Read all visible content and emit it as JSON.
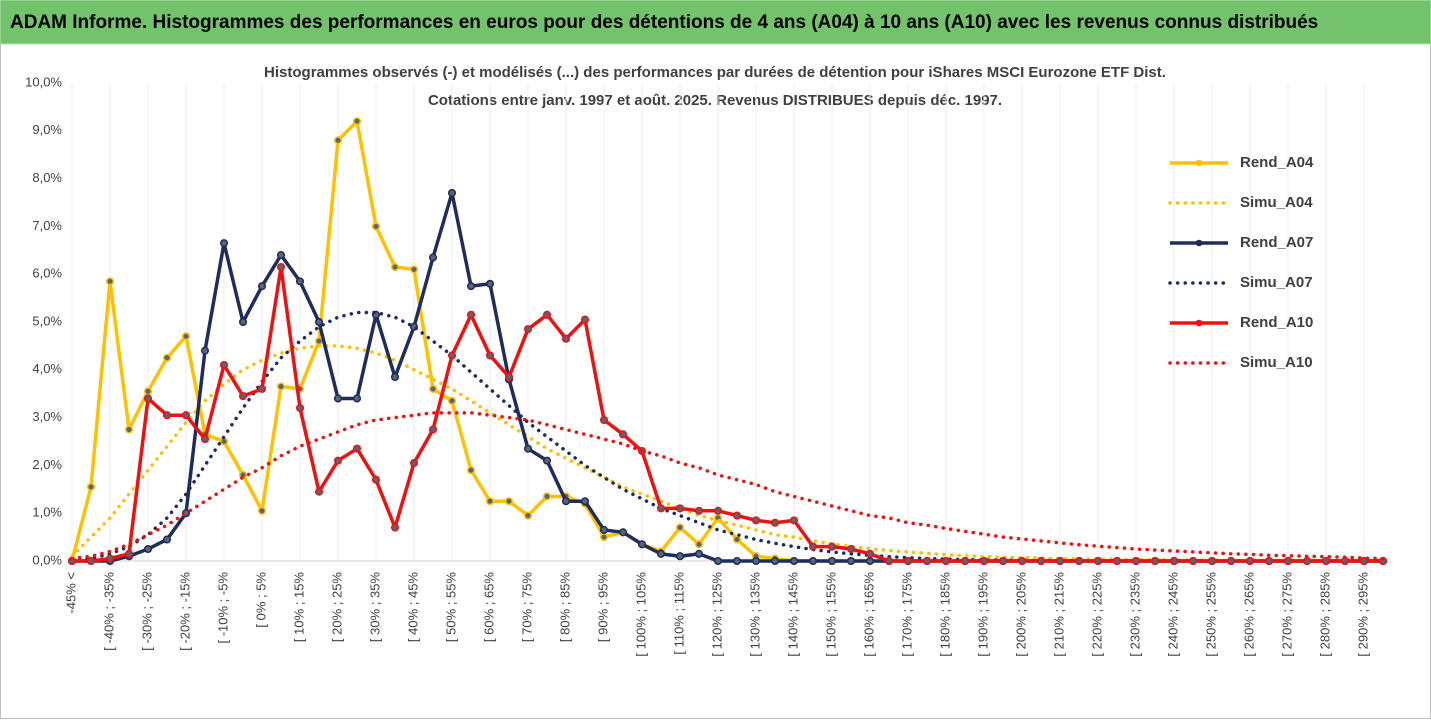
{
  "header": {
    "title": "ADAM Informe. Histogrammes des performances en euros pour des détentions de 4 ans (A04) à 10 ans (A10) avec les revenus connus distribués"
  },
  "chart_data": {
    "type": "line",
    "title": [
      "Histogrammes observés (-) et modélisés (...) des performances par durées de détention pour iShares MSCI Eurozone ETF Dist.",
      "Cotations entre janv. 1997 et août. 2025. Revenus DISTRIBUES depuis déc. 1997."
    ],
    "categories": [
      "-45% <",
      null,
      "[ -40% ; -35%",
      null,
      "[ -30% ; -25%",
      null,
      "[ -20% ; -15%",
      null,
      "[ -10% ; -5%",
      null,
      "[ 0% ; 5%",
      null,
      "[ 10% ; 15%",
      null,
      "[ 20% ; 25%",
      null,
      "[ 30% ; 35%",
      null,
      "[ 40% ; 45%",
      null,
      "[ 50% ; 55%",
      null,
      "[ 60% ; 65%",
      null,
      "[ 70% ; 75%",
      null,
      "[ 80% ; 85%",
      null,
      "[ 90% ; 95%",
      null,
      "[ 100% ; 105%",
      null,
      "[ 110% ; 115%",
      null,
      "[ 120% ; 125%",
      null,
      "[ 130% ; 135%",
      null,
      "[ 140% ; 145%",
      null,
      "[ 150% ; 155%",
      null,
      "[ 160% ; 165%",
      null,
      "[ 170% ; 175%",
      null,
      "[ 180% ; 185%",
      null,
      "[ 190% ; 195%",
      null,
      "[ 200% ; 205%",
      null,
      "[ 210% ; 215%",
      null,
      "[ 220% ; 225%",
      null,
      "[ 230% ; 235%",
      null,
      "[ 240% ; 245%",
      null,
      "[ 250% ; 255%",
      null,
      "[ 260% ; 265%",
      null,
      "[ 270% ; 275%",
      null,
      "[ 280% ; 285%",
      null,
      "[ 290% ; 295%",
      null
    ],
    "ylim": [
      0,
      10
    ],
    "yticks": [
      {
        "value": 0,
        "label": "0,0%"
      },
      {
        "value": 1,
        "label": "1,0%"
      },
      {
        "value": 2,
        "label": "2,0%"
      },
      {
        "value": 3,
        "label": "3,0%"
      },
      {
        "value": 4,
        "label": "4,0%"
      },
      {
        "value": 5,
        "label": "5,0%"
      },
      {
        "value": 6,
        "label": "6,0%"
      },
      {
        "value": 7,
        "label": "7,0%"
      },
      {
        "value": 8,
        "label": "8,0%"
      },
      {
        "value": 9,
        "label": "9,0%"
      },
      {
        "value": 10,
        "label": "10,0%"
      }
    ],
    "legend": "right",
    "series": [
      {
        "name": "Rend_A04",
        "color": "#ffc000",
        "style": "solid",
        "markers": true,
        "values": [
          0,
          1.55,
          5.85,
          2.75,
          3.55,
          4.25,
          4.7,
          2.65,
          2.5,
          1.8,
          1.05,
          3.65,
          3.6,
          4.6,
          8.8,
          9.2,
          7.0,
          6.15,
          6.1,
          3.6,
          3.35,
          1.9,
          1.25,
          1.25,
          0.95,
          1.35,
          1.35,
          1.2,
          0.5,
          0.6,
          0.35,
          0.2,
          0.7,
          0.35,
          0.9,
          0.45,
          0.1,
          0.05,
          0,
          0,
          0,
          0,
          0,
          0,
          0,
          0,
          0,
          0,
          0,
          0,
          0,
          0,
          0,
          0,
          0,
          0,
          0,
          0,
          0,
          0,
          0,
          0,
          0,
          0,
          0,
          0,
          0,
          0,
          0,
          0
        ]
      },
      {
        "name": "Simu_A04",
        "color": "#ffc000",
        "style": "dotted",
        "markers": false,
        "values": [
          0.1,
          0.5,
          0.9,
          1.4,
          1.9,
          2.4,
          2.9,
          3.35,
          3.7,
          4.0,
          4.2,
          4.35,
          4.45,
          4.5,
          4.5,
          4.45,
          4.35,
          4.2,
          4.0,
          3.8,
          3.6,
          3.35,
          3.1,
          2.85,
          2.6,
          2.35,
          2.15,
          1.95,
          1.75,
          1.55,
          1.4,
          1.25,
          1.1,
          0.95,
          0.85,
          0.75,
          0.65,
          0.55,
          0.5,
          0.42,
          0.36,
          0.3,
          0.26,
          0.22,
          0.19,
          0.16,
          0.13,
          0.11,
          0.09,
          0.08,
          0.07,
          0.06,
          0.05,
          0.05,
          0.04,
          0.04,
          0.03,
          0.03,
          0.02,
          0.02,
          0.02,
          0.01,
          0.01,
          0.01,
          0.01,
          0.01,
          0,
          0,
          0,
          0
        ]
      },
      {
        "name": "Rend_A07",
        "color": "#1f2d5c",
        "style": "solid",
        "markers": true,
        "values": [
          0,
          0,
          0,
          0.1,
          0.25,
          0.45,
          1.0,
          4.4,
          6.65,
          5.0,
          5.75,
          6.4,
          5.85,
          5.0,
          3.4,
          3.4,
          5.15,
          3.85,
          4.9,
          6.35,
          7.7,
          5.75,
          5.8,
          3.8,
          2.35,
          2.1,
          1.25,
          1.25,
          0.65,
          0.6,
          0.35,
          0.15,
          0.1,
          0.15,
          0,
          0,
          0,
          0,
          0,
          0,
          0,
          0,
          0,
          0,
          0,
          0,
          0,
          0,
          0,
          0,
          0,
          0,
          0,
          0,
          0,
          0,
          0,
          0,
          0,
          0,
          0,
          0,
          0,
          0,
          0,
          0,
          0,
          0,
          0,
          0
        ]
      },
      {
        "name": "Simu_A07",
        "color": "#1f2d5c",
        "style": "dotted",
        "markers": false,
        "values": [
          0,
          0.05,
          0.15,
          0.3,
          0.55,
          0.9,
          1.4,
          2.0,
          2.6,
          3.2,
          3.75,
          4.25,
          4.6,
          4.9,
          5.1,
          5.2,
          5.2,
          5.1,
          4.9,
          4.6,
          4.3,
          3.95,
          3.6,
          3.25,
          2.9,
          2.6,
          2.3,
          2.0,
          1.75,
          1.5,
          1.3,
          1.1,
          0.95,
          0.8,
          0.65,
          0.55,
          0.45,
          0.37,
          0.3,
          0.24,
          0.19,
          0.15,
          0.12,
          0.09,
          0.07,
          0.05,
          0.04,
          0.03,
          0.02,
          0.02,
          0.01,
          0.01,
          0.01,
          0,
          0,
          0,
          0,
          0,
          0,
          0,
          0,
          0,
          0,
          0,
          0,
          0,
          0,
          0,
          0,
          0
        ]
      },
      {
        "name": "Rend_A10",
        "color": "#ee1111",
        "style": "solid",
        "markers": true,
        "values": [
          0,
          0,
          0.05,
          0.15,
          3.4,
          3.05,
          3.05,
          2.55,
          4.1,
          3.45,
          3.6,
          6.15,
          3.2,
          1.45,
          2.1,
          2.35,
          1.7,
          0.7,
          2.05,
          2.75,
          4.3,
          5.15,
          4.3,
          3.85,
          4.85,
          5.15,
          4.65,
          5.05,
          2.95,
          2.65,
          2.3,
          1.1,
          1.1,
          1.05,
          1.05,
          0.95,
          0.85,
          0.8,
          0.85,
          0.3,
          0.3,
          0.25,
          0.15,
          0,
          0,
          0,
          0,
          0,
          0,
          0,
          0,
          0,
          0,
          0,
          0,
          0,
          0,
          0,
          0,
          0,
          0,
          0,
          0,
          0,
          0,
          0,
          0,
          0,
          0,
          0
        ]
      },
      {
        "name": "Simu_A10",
        "color": "#ee1111",
        "style": "dotted",
        "markers": false,
        "values": [
          0.05,
          0.1,
          0.2,
          0.35,
          0.55,
          0.75,
          1.0,
          1.25,
          1.5,
          1.75,
          1.95,
          2.2,
          2.4,
          2.55,
          2.7,
          2.85,
          2.95,
          3.0,
          3.05,
          3.1,
          3.1,
          3.1,
          3.05,
          3.0,
          2.95,
          2.85,
          2.75,
          2.65,
          2.55,
          2.45,
          2.3,
          2.2,
          2.05,
          1.95,
          1.8,
          1.7,
          1.6,
          1.45,
          1.35,
          1.25,
          1.15,
          1.05,
          0.95,
          0.9,
          0.8,
          0.75,
          0.68,
          0.62,
          0.56,
          0.5,
          0.46,
          0.42,
          0.38,
          0.34,
          0.31,
          0.28,
          0.25,
          0.23,
          0.21,
          0.19,
          0.17,
          0.15,
          0.14,
          0.12,
          0.11,
          0.1,
          0.09,
          0.08,
          0.06,
          0.05
        ]
      }
    ]
  }
}
